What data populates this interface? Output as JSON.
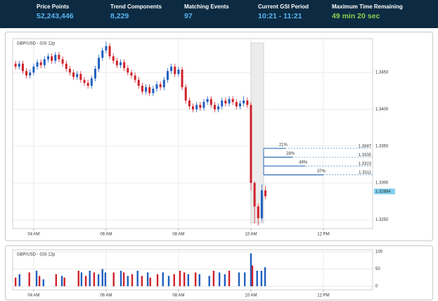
{
  "header": {
    "items": [
      {
        "label": "Price Points",
        "value": "52,243,446"
      },
      {
        "label": "Trend Components",
        "value": "8,229"
      },
      {
        "label": "Matching Events",
        "value": "97"
      },
      {
        "label": "Current GSI Period",
        "value": "10:21 - 11:21"
      },
      {
        "label": "Maximum Time Remaining",
        "value": "49 min 20 sec"
      }
    ]
  },
  "chart_data": [
    {
      "type": "candlestick",
      "title": "GBP/USD - GSI 12p",
      "up_color": "#1f5fbf",
      "down_color": "#d0212a",
      "grid": true,
      "xlim": [
        3.42,
        13.36
      ],
      "xticks": [
        {
          "value": 4,
          "label": "04 AM"
        },
        {
          "value": 6,
          "label": "06 AM"
        },
        {
          "value": 8,
          "label": "08 AM"
        },
        {
          "value": 10,
          "label": "10 AM"
        },
        {
          "value": 12,
          "label": "12 PM"
        }
      ],
      "ylim": [
        1.3238,
        1.3496
      ],
      "yticks": [
        {
          "value": 1.345,
          "label": "1.3450"
        },
        {
          "value": 1.34,
          "label": "1.3400"
        },
        {
          "value": 1.335,
          "label": "1.3350"
        },
        {
          "value": 1.33,
          "label": "1.3300"
        },
        {
          "value": 1.325,
          "label": "1.3250"
        }
      ],
      "x": [
        3.5,
        3.6,
        3.7,
        3.8,
        3.9,
        4.0,
        4.1,
        4.2,
        4.3,
        4.4,
        4.5,
        4.6,
        4.7,
        4.8,
        4.9,
        5.0,
        5.1,
        5.2,
        5.3,
        5.4,
        5.5,
        5.6,
        5.7,
        5.8,
        5.9,
        6.0,
        6.1,
        6.2,
        6.3,
        6.4,
        6.5,
        6.6,
        6.7,
        6.8,
        6.9,
        7.0,
        7.1,
        7.2,
        7.3,
        7.4,
        7.5,
        7.6,
        7.7,
        7.8,
        7.9,
        8.0,
        8.1,
        8.2,
        8.3,
        8.4,
        8.5,
        8.6,
        8.7,
        8.8,
        8.9,
        9.0,
        9.1,
        9.2,
        9.3,
        9.4,
        9.5,
        9.6,
        9.7,
        9.8,
        9.9,
        10.0,
        10.1,
        10.2,
        10.3,
        10.4
      ],
      "open": [
        1.3462,
        1.3458,
        1.3462,
        1.3452,
        1.3446,
        1.345,
        1.3458,
        1.3464,
        1.346,
        1.3468,
        1.3472,
        1.3466,
        1.3474,
        1.3468,
        1.3462,
        1.3455,
        1.345,
        1.3444,
        1.3448,
        1.344,
        1.3436,
        1.3432,
        1.3442,
        1.3455,
        1.347,
        1.348,
        1.3486,
        1.3472,
        1.3466,
        1.346,
        1.3464,
        1.3456,
        1.345,
        1.3446,
        1.344,
        1.3432,
        1.3424,
        1.343,
        1.3422,
        1.3428,
        1.3434,
        1.343,
        1.344,
        1.3452,
        1.3458,
        1.3448,
        1.3454,
        1.343,
        1.3412,
        1.3404,
        1.34,
        1.3406,
        1.3402,
        1.341,
        1.3414,
        1.3406,
        1.34,
        1.3404,
        1.3412,
        1.3408,
        1.3414,
        1.341,
        1.3404,
        1.3408,
        1.3412,
        1.3406,
        1.33,
        1.3268,
        1.3252,
        1.329
      ],
      "high": [
        1.3466,
        1.3466,
        1.3466,
        1.3456,
        1.3454,
        1.3462,
        1.3468,
        1.3468,
        1.3472,
        1.3476,
        1.3476,
        1.3478,
        1.3478,
        1.3472,
        1.3466,
        1.3459,
        1.3454,
        1.3452,
        1.3452,
        1.3444,
        1.344,
        1.3446,
        1.3459,
        1.3474,
        1.3484,
        1.3492,
        1.349,
        1.3476,
        1.347,
        1.3468,
        1.3468,
        1.346,
        1.3454,
        1.345,
        1.3444,
        1.3436,
        1.3434,
        1.3434,
        1.3432,
        1.3438,
        1.3438,
        1.3444,
        1.3456,
        1.3462,
        1.3462,
        1.3458,
        1.3458,
        1.3434,
        1.3416,
        1.3408,
        1.341,
        1.341,
        1.3414,
        1.3418,
        1.3418,
        1.341,
        1.3408,
        1.3416,
        1.3416,
        1.3418,
        1.3418,
        1.3414,
        1.3412,
        1.3418,
        1.3416,
        1.341,
        1.3302,
        1.3272,
        1.3298,
        1.3296
      ],
      "low": [
        1.3454,
        1.3454,
        1.3448,
        1.3442,
        1.3442,
        1.3446,
        1.3454,
        1.3456,
        1.3456,
        1.3464,
        1.3462,
        1.3462,
        1.3464,
        1.3458,
        1.3451,
        1.3446,
        1.344,
        1.344,
        1.3436,
        1.3432,
        1.3428,
        1.3428,
        1.3438,
        1.3451,
        1.3466,
        1.3476,
        1.3468,
        1.3462,
        1.3456,
        1.3456,
        1.3452,
        1.3446,
        1.3442,
        1.3436,
        1.3428,
        1.342,
        1.342,
        1.3418,
        1.3418,
        1.3424,
        1.3426,
        1.3426,
        1.3436,
        1.3448,
        1.3444,
        1.3444,
        1.3426,
        1.3408,
        1.34,
        1.3396,
        1.3396,
        1.3398,
        1.3398,
        1.3406,
        1.3402,
        1.3396,
        1.3396,
        1.34,
        1.3404,
        1.3404,
        1.3406,
        1.34,
        1.34,
        1.3404,
        1.3402,
        1.329,
        1.3245,
        1.3242,
        1.3248,
        1.3278
      ],
      "close": [
        1.3458,
        1.3462,
        1.3452,
        1.3446,
        1.345,
        1.3458,
        1.3464,
        1.346,
        1.3468,
        1.3472,
        1.3466,
        1.3474,
        1.3468,
        1.3462,
        1.3455,
        1.345,
        1.3444,
        1.3448,
        1.344,
        1.3436,
        1.3432,
        1.3442,
        1.3455,
        1.347,
        1.348,
        1.3486,
        1.3472,
        1.3466,
        1.346,
        1.3464,
        1.3456,
        1.345,
        1.3446,
        1.344,
        1.3432,
        1.3424,
        1.343,
        1.3422,
        1.3428,
        1.3434,
        1.343,
        1.344,
        1.3452,
        1.3458,
        1.3448,
        1.3454,
        1.343,
        1.3412,
        1.3404,
        1.34,
        1.3406,
        1.3402,
        1.341,
        1.3414,
        1.3406,
        1.34,
        1.3404,
        1.3412,
        1.3408,
        1.3414,
        1.341,
        1.3404,
        1.3408,
        1.3412,
        1.3406,
        1.33,
        1.3268,
        1.3252,
        1.329,
        1.3282
      ],
      "highlight_x": [
        10.0,
        10.35
      ],
      "projections": {
        "color": "#2f6db5",
        "values": [
          21,
          28,
          49,
          37
        ],
        "value_labels": [
          "21%",
          "28%",
          "49%",
          "37%"
        ],
        "prices": [
          1.3347,
          1.3335,
          1.3323,
          1.3311
        ],
        "end_x": [
          10.95,
          11.15,
          11.5,
          12.0
        ]
      },
      "last_price": 1.32884
    },
    {
      "type": "bar",
      "title": "GBP/USD - GSI 12p",
      "grid": true,
      "xlim": [
        3.42,
        13.36
      ],
      "xticks": [
        {
          "value": 4,
          "label": "04 AM"
        },
        {
          "value": 6,
          "label": "06 AM"
        },
        {
          "value": 8,
          "label": "08 AM"
        },
        {
          "value": 10,
          "label": "10 AM"
        },
        {
          "value": 12,
          "label": "12 PM"
        }
      ],
      "ylim": [
        0,
        102
      ],
      "yticks": [
        0,
        50,
        100
      ],
      "x": [
        3.5,
        3.61,
        3.88,
        4.08,
        4.16,
        4.27,
        4.62,
        4.78,
        4.85,
        5.24,
        5.32,
        5.44,
        5.55,
        5.67,
        5.79,
        5.9,
        5.98,
        6.21,
        6.41,
        6.49,
        6.6,
        6.72,
        6.87,
        6.99,
        7.15,
        7.22,
        7.42,
        7.57,
        7.73,
        7.88,
        8.04,
        8.16,
        8.27,
        8.47,
        8.58,
        8.85,
        8.97,
        9.13,
        9.28,
        9.4,
        9.67,
        9.83,
        10.0,
        10.04,
        10.17,
        10.29,
        10.39
      ],
      "values": [
        25,
        35,
        40,
        45,
        30,
        20,
        35,
        30,
        25,
        45,
        40,
        30,
        45,
        40,
        35,
        50,
        40,
        40,
        45,
        40,
        30,
        35,
        45,
        30,
        40,
        25,
        35,
        40,
        30,
        35,
        45,
        40,
        35,
        40,
        35,
        30,
        45,
        40,
        35,
        45,
        40,
        40,
        95,
        60,
        45,
        45,
        55
      ],
      "colors": [
        "#d0212a",
        "#1f5fbf",
        "#d0212a",
        "#1f5fbf",
        "#d0212a",
        "#1f5fbf",
        "#d0212a",
        "#1f5fbf",
        "#d0212a",
        "#d0212a",
        "#1f5fbf",
        "#d0212a",
        "#1f5fbf",
        "#d0212a",
        "#1f5fbf",
        "#1f5fbf",
        "#1f5fbf",
        "#d0212a",
        "#1f5fbf",
        "#d0212a",
        "#1f5fbf",
        "#d0212a",
        "#1f5fbf",
        "#d0212a",
        "#1f5fbf",
        "#d0212a",
        "#d0212a",
        "#1f5fbf",
        "#1f5fbf",
        "#d0212a",
        "#d0212a",
        "#d0212a",
        "#1f5fbf",
        "#d0212a",
        "#1f5fbf",
        "#1f5fbf",
        "#d0212a",
        "#1f5fbf",
        "#1f5fbf",
        "#d0212a",
        "#1f5fbf",
        "#1f5fbf",
        "#1f5fbf",
        "#d0212a",
        "#1f5fbf",
        "#1f5fbf",
        "#1f5fbf"
      ]
    }
  ]
}
